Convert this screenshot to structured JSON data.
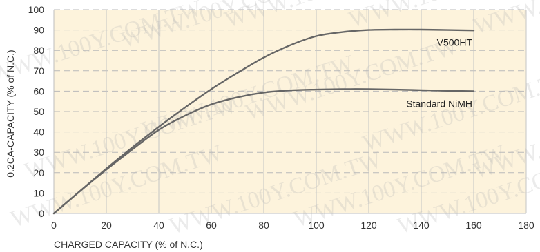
{
  "chart_data": {
    "type": "line",
    "xlabel": "CHARGED CAPACITY (% of N.C.)",
    "ylabel": "0.2CA-CAPACITY (% of N.C.)",
    "xlim": [
      0,
      180
    ],
    "ylim": [
      0,
      100
    ],
    "xticks": [
      0,
      20,
      40,
      60,
      80,
      100,
      120,
      140,
      160,
      180
    ],
    "yticks": [
      0,
      10,
      20,
      30,
      40,
      50,
      60,
      70,
      80,
      90,
      100
    ],
    "grid": true,
    "plot_background": "#fdf3dc",
    "series": [
      {
        "name": "V500HT",
        "color": "#666666",
        "x": [
          0,
          10,
          20,
          30,
          40,
          50,
          60,
          70,
          80,
          90,
          100,
          110,
          120,
          130,
          140,
          150,
          160
        ],
        "y": [
          0,
          11,
          22,
          32.5,
          42.5,
          52,
          61,
          69,
          76.5,
          82.5,
          87,
          89,
          90,
          90.2,
          90.2,
          90,
          89.8
        ]
      },
      {
        "name": "Standard NiMH",
        "color": "#666666",
        "x": [
          0,
          10,
          20,
          30,
          40,
          50,
          60,
          70,
          80,
          90,
          100,
          110,
          120,
          130,
          140,
          150,
          160
        ],
        "y": [
          0,
          11,
          21.5,
          31.5,
          41,
          48,
          53.5,
          57,
          59.3,
          60.4,
          60.8,
          61,
          61,
          60.8,
          60.5,
          60.2,
          60
        ]
      }
    ],
    "annotations": [
      {
        "text": "V500HT",
        "x": 160,
        "y": 90
      },
      {
        "text": "Standard NiMH",
        "x": 160,
        "y": 60
      }
    ],
    "watermark": "WWW.100Y.COM.TW"
  }
}
